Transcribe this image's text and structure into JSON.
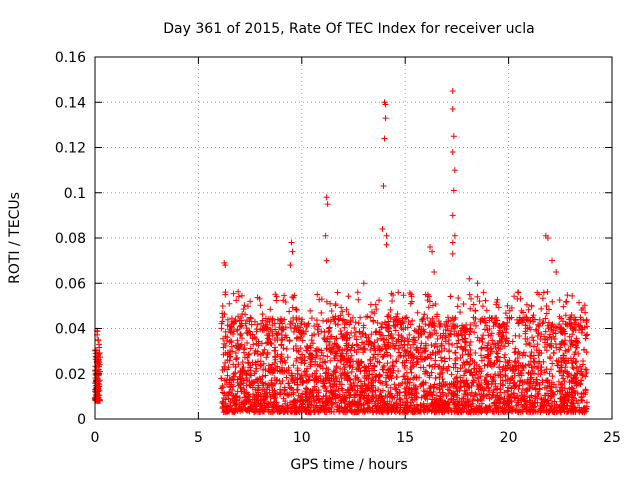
{
  "chart_data": {
    "type": "scatter",
    "title": "Day 361 of 2015, Rate Of TEC Index for receiver ucla",
    "xlabel": "GPS time / hours",
    "ylabel": "ROTI / TECUs",
    "xlim": [
      0,
      25
    ],
    "ylim": [
      0,
      0.16
    ],
    "x_ticks": [
      0,
      5,
      10,
      15,
      20,
      25
    ],
    "x_tick_labels": [
      "0",
      "5",
      "10",
      "15",
      "20",
      "25"
    ],
    "y_ticks": [
      0,
      0.02,
      0.04,
      0.06,
      0.08,
      0.1,
      0.12,
      0.14,
      0.16
    ],
    "y_tick_labels": [
      "0",
      "0.02",
      "0.04",
      "0.06",
      "0.08",
      "0.1",
      "0.12",
      "0.14",
      "0.16"
    ],
    "grid": true,
    "marker": "+",
    "colors": {
      "series": "#ff0000",
      "grid": "#a0a0a0",
      "axes": "#000000"
    },
    "series": [
      {
        "name": "ROTI",
        "segments": [
          {
            "x_range": [
              0.0,
              0.25
            ],
            "y_base": [
              0.008,
              0.032
            ],
            "peaks": [
              [
                0.1,
                0.039
              ],
              [
                0.15,
                0.035
              ],
              [
                0.2,
                0.033
              ]
            ]
          },
          {
            "x_range": [
              6.1,
              23.8
            ],
            "y_base": [
              0.003,
              0.045
            ],
            "peaks": [
              [
                6.25,
                0.069
              ],
              [
                6.3,
                0.068
              ],
              [
                6.3,
                0.055
              ],
              [
                7.5,
                0.052
              ],
              [
                9.5,
                0.078
              ],
              [
                9.55,
                0.074
              ],
              [
                9.45,
                0.068
              ],
              [
                11.2,
                0.098
              ],
              [
                11.25,
                0.095
              ],
              [
                11.15,
                0.081
              ],
              [
                11.2,
                0.07
              ],
              [
                13.0,
                0.06
              ],
              [
                13.9,
                0.084
              ],
              [
                14.0,
                0.14
              ],
              [
                14.05,
                0.139
              ],
              [
                14.05,
                0.133
              ],
              [
                14.0,
                0.124
              ],
              [
                13.95,
                0.103
              ],
              [
                14.1,
                0.081
              ],
              [
                14.1,
                0.077
              ],
              [
                16.2,
                0.076
              ],
              [
                16.3,
                0.074
              ],
              [
                16.4,
                0.065
              ],
              [
                17.3,
                0.145
              ],
              [
                17.3,
                0.137
              ],
              [
                17.35,
                0.125
              ],
              [
                17.3,
                0.118
              ],
              [
                17.4,
                0.11
              ],
              [
                17.35,
                0.101
              ],
              [
                17.3,
                0.09
              ],
              [
                17.4,
                0.081
              ],
              [
                17.3,
                0.078
              ],
              [
                17.3,
                0.073
              ],
              [
                18.1,
                0.062
              ],
              [
                18.5,
                0.06
              ],
              [
                21.8,
                0.081
              ],
              [
                21.9,
                0.08
              ],
              [
                22.1,
                0.07
              ],
              [
                22.3,
                0.065
              ],
              [
                23.6,
                0.049
              ],
              [
                23.7,
                0.047
              ]
            ]
          }
        ]
      }
    ]
  }
}
